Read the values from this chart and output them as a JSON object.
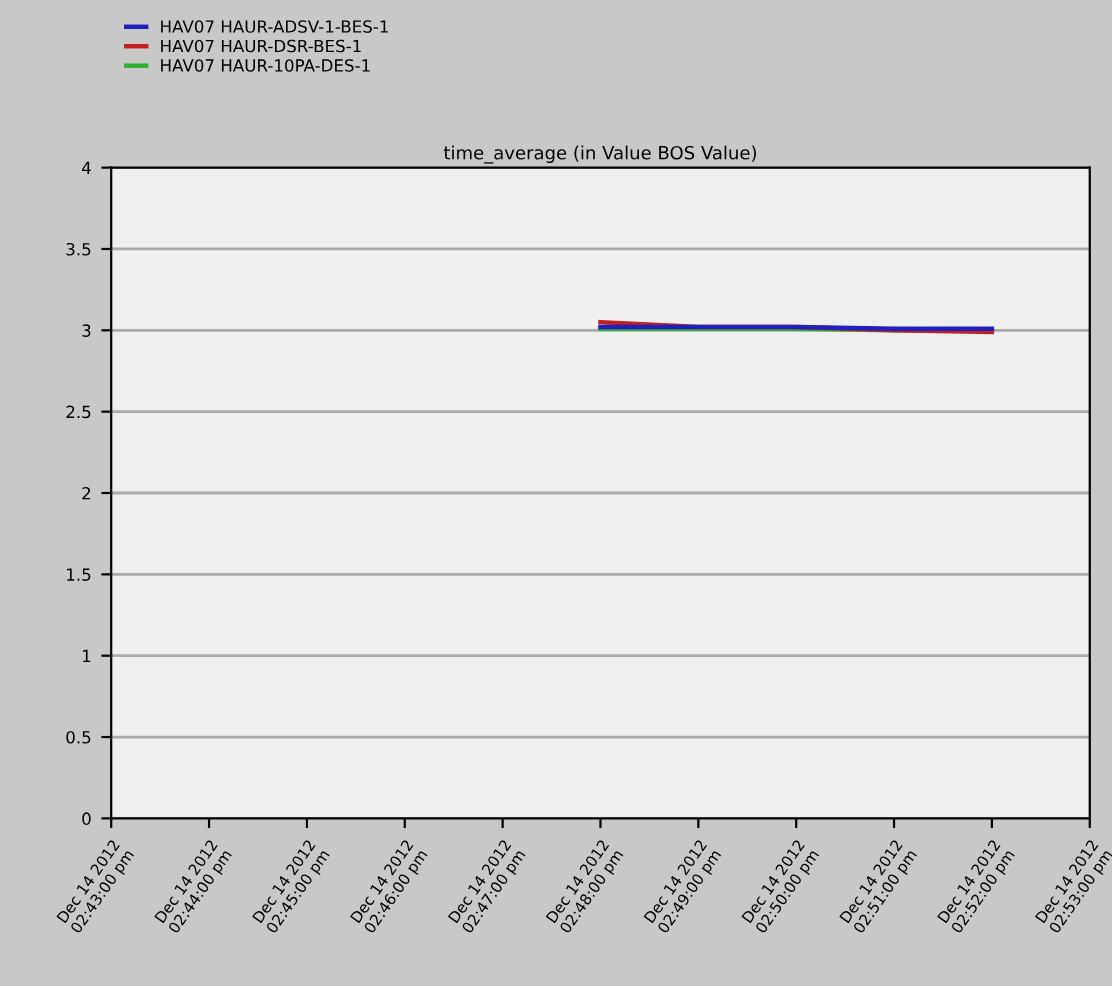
{
  "chart_data": {
    "type": "line",
    "title": "time_average (in Value BOS Value)",
    "x": [
      "2012-12-14T14:48",
      "2012-12-14T14:49",
      "2012-12-14T14:50",
      "2012-12-14T14:51",
      "2012-12-14T14:52"
    ],
    "series": [
      {
        "name": "HAV07 HAUR-ADSV-1-BES-1",
        "color": "#2020c0",
        "values": [
          3.02,
          3.02,
          3.02,
          3.01,
          3.01
        ]
      },
      {
        "name": "HAV07 HAUR-DSR-BES-1",
        "color": "#c02020",
        "values": [
          3.05,
          3.02,
          3.02,
          3.0,
          2.99
        ]
      },
      {
        "name": "HAV07 HAUR-10PA-DES-1",
        "color": "#30b030",
        "values": [
          3.01,
          3.01,
          3.01,
          3.0,
          3.0
        ]
      }
    ],
    "xlim": [
      "2012-12-14T14:43",
      "2012-12-14T14:53"
    ],
    "xticks": [
      {
        "value": "2012-12-14T14:43",
        "label": "Dec 14 2012\n02:43:00 pm"
      },
      {
        "value": "2012-12-14T14:44",
        "label": "Dec 14 2012\n02:44:00 pm"
      },
      {
        "value": "2012-12-14T14:45",
        "label": "Dec 14 2012\n02:45:00 pm"
      },
      {
        "value": "2012-12-14T14:46",
        "label": "Dec 14 2012\n02:46:00 pm"
      },
      {
        "value": "2012-12-14T14:47",
        "label": "Dec 14 2012\n02:47:00 pm"
      },
      {
        "value": "2012-12-14T14:48",
        "label": "Dec 14 2012\n02:48:00 pm"
      },
      {
        "value": "2012-12-14T14:49",
        "label": "Dec 14 2012\n02:49:00 pm"
      },
      {
        "value": "2012-12-14T14:50",
        "label": "Dec 14 2012\n02:50:00 pm"
      },
      {
        "value": "2012-12-14T14:51",
        "label": "Dec 14 2012\n02:51:00 pm"
      },
      {
        "value": "2012-12-14T14:52",
        "label": "Dec 14 2012\n02:52:00 pm"
      },
      {
        "value": "2012-12-14T14:53",
        "label": "Dec 14 2012\n02:53:00 pm"
      }
    ],
    "ylim": [
      0,
      4
    ],
    "yticks": [
      0,
      0.5,
      1,
      1.5,
      2,
      2.5,
      3,
      3.5,
      4
    ],
    "grid": "y",
    "legend": "top left",
    "marker": "none",
    "line_style": "solid"
  }
}
